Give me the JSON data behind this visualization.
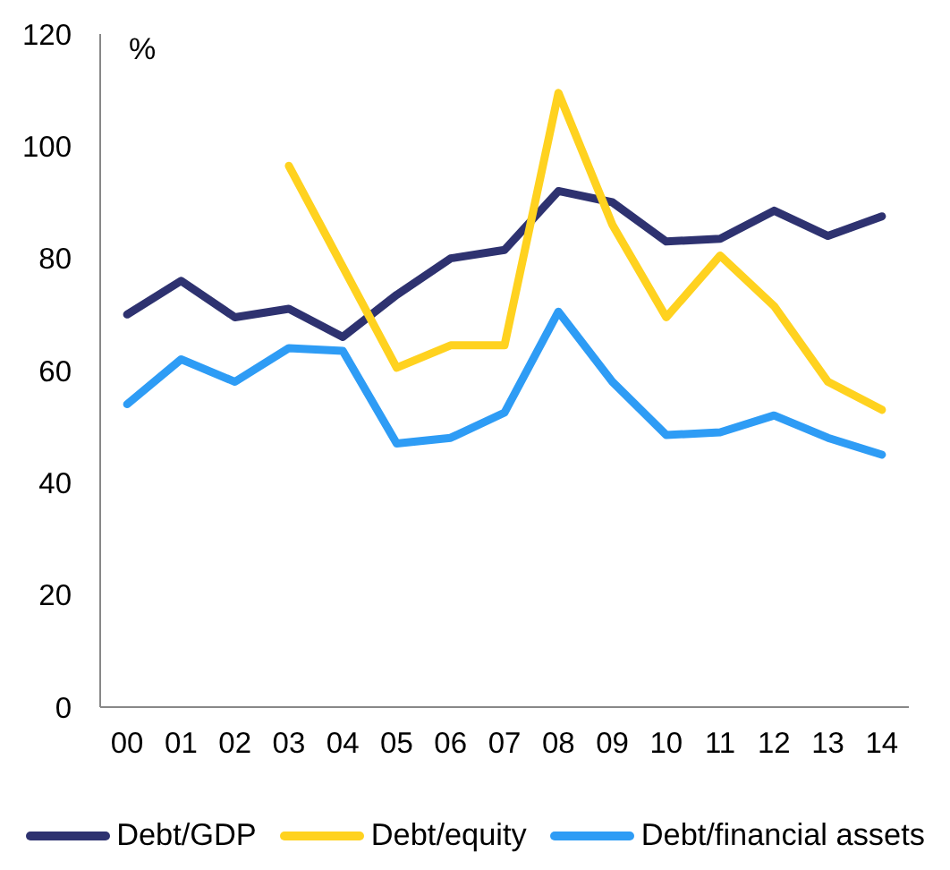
{
  "chart_data": {
    "type": "line",
    "ylabel": "%",
    "categories": [
      "00",
      "01",
      "02",
      "03",
      "04",
      "05",
      "06",
      "07",
      "08",
      "09",
      "10",
      "11",
      "12",
      "13",
      "14"
    ],
    "series": [
      {
        "name": "Debt/GDP",
        "color": "#2e3270",
        "values": [
          70,
          76,
          69.5,
          71,
          66,
          73.5,
          80,
          81.5,
          92,
          90,
          83,
          83.5,
          88.5,
          84,
          87.5
        ]
      },
      {
        "name": "Debt/equity",
        "color": "#ffd21f",
        "values": [
          null,
          null,
          null,
          96.5,
          78.5,
          60.5,
          64.5,
          64.5,
          109.5,
          86,
          69.5,
          80.5,
          71.5,
          58,
          53
        ]
      },
      {
        "name": "Debt/financial assets",
        "color": "#2e9cf5",
        "values": [
          54,
          62,
          58,
          64,
          63.5,
          47,
          48,
          52.5,
          70.5,
          58,
          48.5,
          49,
          52,
          48,
          45
        ]
      }
    ],
    "ylim": [
      0,
      120
    ],
    "yticks": [
      0,
      20,
      40,
      60,
      80,
      100,
      120
    ],
    "legend": "bottom",
    "line_style": "solid"
  }
}
